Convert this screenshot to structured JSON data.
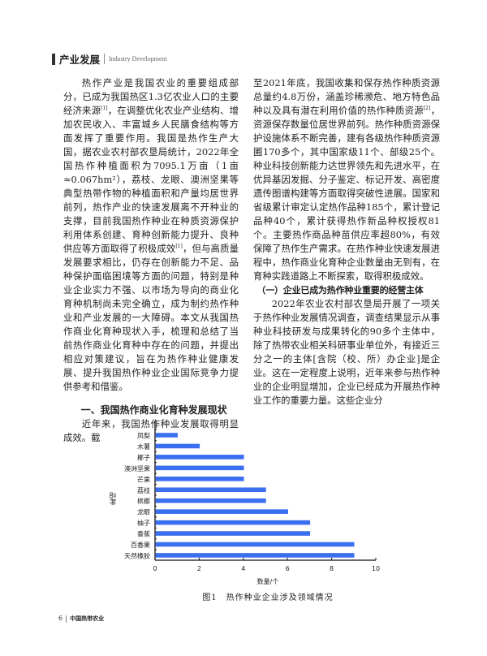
{
  "header": {
    "section": "产业发展",
    "section_en": "Industry Development"
  },
  "left": {
    "p1": "热作产业是我国农业的重要组成部分，已成为我国热区1.3亿农业人口的主要经济来源",
    "p1_ref1": "[1]",
    "p1b": "，在调整优化农业产业结构、增加农民收入、丰富城乡人民膳食结构等方面发挥了重要作用。我国是热作生产大国，据农业农村部农垦局统计，2022年全国热作种植面积为7095.1万亩（1亩≈0.067hm²），荔枝、龙眼、澳洲坚果等典型热带作物的种植面积和产量均居世界前列，热作产业的快速发展离不开种业的支撑，目前我国热作种业在种质资源保护利用体系创建、育种创新能力提升、良种供应等方面取得了积极成效",
    "p1_ref2": "[1]",
    "p1c": "，但与高质量发展要求相比，仍存在创新能力不足、品种保护面临困境等方面的问题，特别是种业企业实力不强、以市场为导向的商业化育种机制尚未完全确立，成为制约热作种业和产业发展的一大障碍。本文从我国热作商业化育种现状入手，梳理和总结了当前热作商业化育种中存在的问题，并提出相应对策建议，旨在为热作种业健康发展、提升我国热作种业企业国际竞争力提供参考和借鉴。",
    "h1": "一、我国热作商业化育种发展现状",
    "p2": "近年来，我国热作种业发展取得明显成效。截"
  },
  "right": {
    "p1": "至2021年底，我国收集和保存热作种质资源总量约4.8万份，涵盖珍稀濒危、地方特色品种以及具有潜在利用价值的热作种质资源",
    "p1_ref": "[2]",
    "p1b": "，资源保存数量位居世界前列。热作种质资源保护设施体系不断完善，建有各级热作种质资源圃170多个，其中国家级11个、部级25个。种业科技创新能力达世界领先和先进水平，在优异基因发掘、分子鉴定、标记开发、高密度遗传图谱构建等方面取得突破性进展。国家和省级累计审定认定热作品种185个，累计登记品种40个，累计获得热作新品种权授权81个。主要热作商品种苗供应率超80%，有效保障了热作生产需求。在热作种业快速发展进程中，热作商业化育种企业数量由无到有，在育种实践道路上不断探索，取得积极成效。",
    "h2": "（一）企业已成为热作种业重要的经营主体",
    "p2": "2022年农业农村部农垦局开展了一项关于热作种业发展情况调查，调查结果显示从事种业科技研发与成果转化的90多个主体中，除了热带农业相关科研事业单位外，有接近三分之一的主体[含院（校、所）办企业]是企业。这在一定程度上说明，近年来参与热作种业的企业明显增加，企业已经成为开展热作种业工作的重要力量。这些企业分"
  },
  "chart_data": {
    "type": "bar",
    "orientation": "horizontal",
    "categories": [
      "凤梨",
      "木薯",
      "椰子",
      "澳洲坚果",
      "芒果",
      "荔枝",
      "槟榔",
      "龙眼",
      "柚子",
      "香蕉",
      "百香果",
      "天然橡胶"
    ],
    "values": [
      1,
      2,
      4,
      4,
      4,
      5,
      5,
      6,
      7,
      7,
      9,
      9
    ],
    "xlabel": "数量/个",
    "ylabel": "品种",
    "xlim": [
      0,
      10
    ],
    "xticks": [
      "0",
      "2",
      "4",
      "6",
      "8",
      "10"
    ],
    "bar_color": "#3a6ff0",
    "grid": false
  },
  "caption": "图1　热作种业企业涉及领域情况",
  "footer": {
    "page": "6",
    "journal": "中国热带农业"
  }
}
